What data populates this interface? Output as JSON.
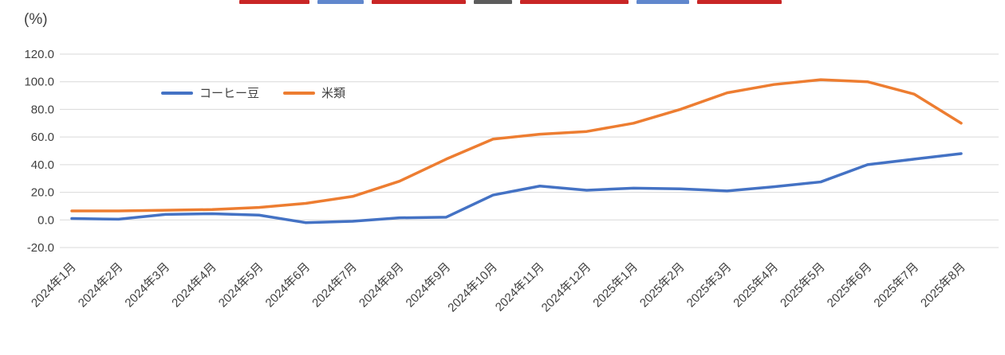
{
  "y_axis_unit": "(%)",
  "chart_data": {
    "type": "line",
    "title": "",
    "xlabel": "",
    "ylabel": "(%)",
    "categories": [
      "2024年1月",
      "2024年2月",
      "2024年3月",
      "2024年4月",
      "2024年5月",
      "2024年6月",
      "2024年7月",
      "2024年8月",
      "2024年9月",
      "2024年10月",
      "2024年11月",
      "2024年12月",
      "2025年1月",
      "2025年2月",
      "2025年3月",
      "2025年4月",
      "2025年5月",
      "2025年6月",
      "2025年7月",
      "2025年8月"
    ],
    "series": [
      {
        "name": "コーヒー豆",
        "color": "#4472C4",
        "values": [
          1.0,
          0.5,
          4.0,
          4.5,
          3.5,
          -2.0,
          -1.0,
          1.5,
          2.0,
          18.0,
          24.5,
          21.5,
          23.0,
          22.5,
          21.0,
          24.0,
          27.5,
          40.0,
          44.0,
          48.0
        ]
      },
      {
        "name": "米類",
        "color": "#ED7D31",
        "values": [
          6.5,
          6.5,
          7.0,
          7.5,
          9.0,
          12.0,
          17.0,
          28.0,
          44.0,
          58.5,
          62.0,
          64.0,
          70.0,
          80.0,
          92.0,
          98.0,
          101.5,
          100.0,
          91.0,
          70.0
        ]
      }
    ],
    "ylim": [
      -20,
      120
    ],
    "ytick_step": 20,
    "ytick_labels": [
      "120.0",
      "100.0",
      "80.0",
      "60.0",
      "40.0",
      "20.0",
      "0.0",
      "-20.0"
    ],
    "grid": true,
    "gridline_color": "#D9D9D9",
    "axis_text_color": "#404040",
    "legend_position": "inset-top-left"
  }
}
